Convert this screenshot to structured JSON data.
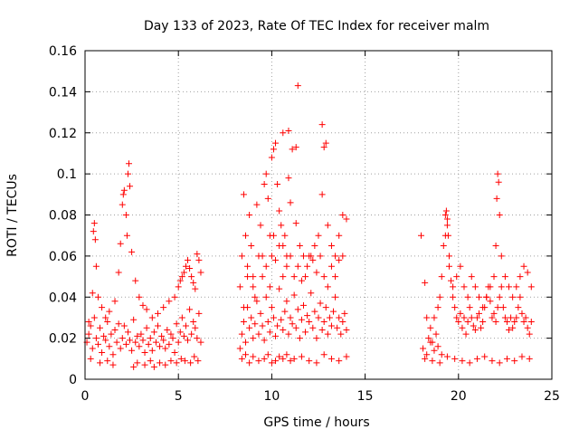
{
  "chart_data": {
    "type": "scatter",
    "title": "Day 133 of 2023, Rate Of TEC Index for receiver malm",
    "xlabel": "GPS time / hours",
    "ylabel": "ROTI / TECUs",
    "xlim": [
      0,
      25
    ],
    "ylim": [
      0,
      0.16
    ],
    "x_ticks": [
      0,
      5,
      10,
      15,
      20,
      25
    ],
    "x_tick_labels": [
      "0",
      "5",
      "10",
      "15",
      "20",
      "25"
    ],
    "y_ticks": [
      0,
      0.02,
      0.04,
      0.06,
      0.08,
      0.1,
      0.12,
      0.14,
      0.16
    ],
    "y_tick_labels": [
      "0",
      "0.02",
      "0.04",
      "0.06",
      "0.08",
      "0.1",
      "0.12",
      "0.14",
      "0.16"
    ],
    "grid": true,
    "marker": "+",
    "marker_color": "#ff0000",
    "series": [
      {
        "x": [
          0.1,
          0.2,
          0.3,
          0.4,
          0.5,
          0.6,
          0.7,
          0.8,
          0.9,
          1.0,
          1.1,
          1.2,
          1.3,
          1.4,
          1.5,
          1.6,
          1.7,
          1.8,
          1.9,
          2.0,
          2.1,
          2.2,
          2.3,
          2.4,
          2.5,
          2.6,
          2.7,
          2.8,
          2.9,
          3.0,
          3.1,
          3.2,
          3.3,
          3.4,
          3.5,
          3.6,
          3.7,
          3.8,
          3.9,
          4.0,
          4.1,
          4.2,
          4.3,
          4.4,
          4.5,
          4.6,
          4.7,
          4.8,
          4.9,
          5.0,
          5.1,
          5.2,
          5.3,
          5.4,
          5.5,
          5.6,
          5.7,
          5.8,
          5.9,
          6.0,
          6.1,
          6.2,
          0.2,
          0.4,
          0.45,
          0.5,
          0.55,
          0.6,
          0.7,
          0.9,
          1.1,
          1.3,
          1.6,
          1.8,
          1.9,
          2.0,
          2.05,
          2.1,
          2.2,
          2.25,
          2.3,
          2.35,
          2.4,
          2.5,
          2.7,
          2.9,
          3.1,
          3.3,
          3.6,
          3.9,
          4.2,
          4.5,
          4.8,
          5.0,
          5.1,
          5.2,
          5.3,
          5.4,
          5.5,
          5.6,
          5.7,
          5.8,
          5.9,
          6.0,
          6.1,
          6.2,
          0.3,
          0.8,
          1.2,
          1.5,
          2.6,
          2.8,
          3.2,
          3.5,
          3.7,
          4.0,
          4.3,
          4.6,
          4.9,
          5.15,
          5.35,
          5.65,
          5.85,
          6.05,
          8.3,
          8.4,
          8.5,
          8.6,
          8.7,
          8.8,
          8.9,
          9.0,
          9.1,
          9.2,
          9.3,
          9.4,
          9.5,
          9.6,
          9.7,
          9.8,
          9.9,
          10.0,
          10.1,
          10.2,
          10.3,
          10.4,
          10.5,
          10.6,
          10.7,
          10.8,
          10.9,
          11.0,
          11.1,
          11.2,
          11.3,
          11.4,
          11.5,
          11.6,
          11.7,
          11.8,
          11.9,
          12.0,
          12.1,
          12.2,
          12.3,
          12.4,
          12.5,
          12.6,
          12.7,
          12.8,
          12.9,
          13.0,
          13.1,
          13.2,
          13.3,
          13.4,
          13.5,
          13.6,
          13.7,
          13.8,
          13.9,
          14.0,
          8.3,
          8.4,
          8.5,
          8.6,
          8.7,
          8.8,
          8.9,
          9.0,
          9.2,
          9.4,
          9.5,
          9.6,
          9.7,
          9.8,
          9.9,
          10.0,
          10.1,
          10.2,
          10.3,
          10.4,
          10.5,
          10.6,
          10.7,
          10.8,
          10.9,
          11.0,
          11.1,
          11.3,
          11.5,
          11.7,
          11.9,
          12.1,
          12.3,
          12.5,
          12.7,
          12.8,
          12.9,
          13.0,
          13.2,
          13.4,
          13.6,
          13.8,
          14.0,
          8.5,
          8.7,
          9.0,
          9.1,
          9.3,
          9.5,
          9.7,
          9.9,
          10.0,
          10.1,
          10.2,
          10.4,
          10.6,
          10.8,
          11.0,
          11.2,
          11.4,
          11.6,
          11.8,
          12.0,
          12.2,
          12.4,
          12.6,
          12.8,
          13.0,
          13.2,
          13.4,
          13.6,
          13.8,
          8.4,
          8.6,
          8.8,
          9.0,
          9.3,
          9.6,
          9.8,
          10.0,
          10.2,
          10.4,
          10.6,
          10.8,
          11.0,
          11.2,
          11.6,
          12.0,
          12.4,
          12.8,
          13.2,
          13.6,
          14.0,
          10.6,
          10.9,
          11.3,
          11.4,
          12.7,
          18.0,
          18.2,
          18.3,
          18.4,
          18.5,
          18.6,
          18.7,
          18.8,
          18.9,
          19.0,
          19.1,
          19.2,
          19.3,
          19.4,
          19.5,
          19.6,
          19.7,
          19.8,
          19.9,
          20.0,
          20.1,
          20.2,
          20.3,
          20.4,
          20.5,
          20.6,
          20.7,
          20.8,
          20.9,
          21.0,
          21.1,
          21.2,
          21.3,
          21.4,
          21.5,
          21.6,
          21.7,
          21.8,
          21.9,
          22.0,
          22.1,
          22.2,
          22.3,
          22.4,
          22.5,
          22.6,
          22.7,
          22.8,
          22.9,
          23.0,
          23.1,
          23.2,
          23.3,
          23.4,
          23.5,
          23.6,
          23.7,
          23.8,
          23.9,
          18.1,
          18.3,
          18.5,
          18.7,
          18.9,
          19.1,
          19.3,
          19.35,
          19.4,
          19.45,
          19.5,
          19.7,
          19.9,
          20.1,
          20.3,
          20.5,
          20.7,
          20.9,
          21.1,
          21.3,
          21.5,
          21.7,
          21.9,
          22.0,
          22.05,
          22.1,
          22.15,
          22.2,
          22.3,
          22.5,
          22.7,
          22.9,
          23.1,
          23.3,
          23.5,
          23.7,
          23.9,
          18.2,
          18.6,
          19.0,
          19.4,
          19.8,
          20.2,
          20.6,
          21.0,
          21.4,
          21.8,
          22.2,
          22.6,
          23.0,
          23.4,
          23.8
        ],
        "y": [
          0.018,
          0.022,
          0.026,
          0.015,
          0.03,
          0.02,
          0.017,
          0.025,
          0.013,
          0.021,
          0.019,
          0.028,
          0.016,
          0.022,
          0.012,
          0.024,
          0.018,
          0.027,
          0.015,
          0.02,
          0.026,
          0.017,
          0.023,
          0.019,
          0.014,
          0.029,
          0.018,
          0.021,
          0.016,
          0.022,
          0.019,
          0.013,
          0.025,
          0.017,
          0.02,
          0.014,
          0.023,
          0.018,
          0.026,
          0.016,
          0.021,
          0.019,
          0.015,
          0.024,
          0.017,
          0.022,
          0.02,
          0.013,
          0.027,
          0.018,
          0.023,
          0.03,
          0.021,
          0.026,
          0.019,
          0.034,
          0.022,
          0.028,
          0.025,
          0.02,
          0.032,
          0.018,
          0.028,
          0.042,
          0.072,
          0.076,
          0.068,
          0.055,
          0.04,
          0.035,
          0.03,
          0.033,
          0.038,
          0.052,
          0.066,
          0.085,
          0.09,
          0.092,
          0.08,
          0.07,
          0.1,
          0.105,
          0.094,
          0.062,
          0.048,
          0.04,
          0.036,
          0.034,
          0.03,
          0.032,
          0.035,
          0.038,
          0.04,
          0.045,
          0.048,
          0.05,
          0.052,
          0.055,
          0.058,
          0.054,
          0.05,
          0.047,
          0.044,
          0.061,
          0.058,
          0.052,
          0.01,
          0.008,
          0.009,
          0.007,
          0.006,
          0.008,
          0.007,
          0.009,
          0.006,
          0.008,
          0.007,
          0.009,
          0.008,
          0.01,
          0.009,
          0.008,
          0.011,
          0.009,
          0.015,
          0.022,
          0.028,
          0.018,
          0.035,
          0.025,
          0.03,
          0.02,
          0.027,
          0.038,
          0.022,
          0.032,
          0.026,
          0.019,
          0.04,
          0.028,
          0.023,
          0.035,
          0.03,
          0.021,
          0.026,
          0.044,
          0.029,
          0.024,
          0.033,
          0.038,
          0.022,
          0.03,
          0.027,
          0.041,
          0.025,
          0.034,
          0.02,
          0.029,
          0.036,
          0.023,
          0.031,
          0.028,
          0.042,
          0.025,
          0.033,
          0.02,
          0.03,
          0.037,
          0.024,
          0.028,
          0.035,
          0.022,
          0.03,
          0.026,
          0.033,
          0.04,
          0.025,
          0.03,
          0.022,
          0.028,
          0.032,
          0.024,
          0.045,
          0.06,
          0.09,
          0.07,
          0.055,
          0.08,
          0.065,
          0.05,
          0.085,
          0.075,
          0.06,
          0.095,
          0.1,
          0.088,
          0.07,
          0.108,
          0.112,
          0.115,
          0.095,
          0.082,
          0.075,
          0.065,
          0.07,
          0.06,
          0.098,
          0.086,
          0.112,
          0.076,
          0.065,
          0.06,
          0.055,
          0.06,
          0.065,
          0.07,
          0.09,
          0.113,
          0.115,
          0.075,
          0.065,
          0.06,
          0.07,
          0.08,
          0.078,
          0.035,
          0.05,
          0.045,
          0.04,
          0.06,
          0.05,
          0.055,
          0.045,
          0.06,
          0.07,
          0.058,
          0.065,
          0.05,
          0.055,
          0.06,
          0.05,
          0.055,
          0.048,
          0.05,
          0.06,
          0.058,
          0.052,
          0.06,
          0.05,
          0.045,
          0.055,
          0.05,
          0.058,
          0.06,
          0.01,
          0.012,
          0.008,
          0.011,
          0.009,
          0.01,
          0.012,
          0.008,
          0.009,
          0.011,
          0.01,
          0.012,
          0.009,
          0.01,
          0.011,
          0.009,
          0.008,
          0.012,
          0.01,
          0.009,
          0.011,
          0.12,
          0.121,
          0.113,
          0.143,
          0.124,
          0.07,
          0.047,
          0.03,
          0.02,
          0.025,
          0.018,
          0.03,
          0.022,
          0.035,
          0.04,
          0.05,
          0.065,
          0.08,
          0.075,
          0.055,
          0.048,
          0.04,
          0.035,
          0.03,
          0.028,
          0.032,
          0.025,
          0.03,
          0.022,
          0.028,
          0.035,
          0.03,
          0.026,
          0.024,
          0.03,
          0.032,
          0.025,
          0.028,
          0.035,
          0.04,
          0.045,
          0.038,
          0.03,
          0.032,
          0.028,
          0.035,
          0.04,
          0.045,
          0.035,
          0.03,
          0.028,
          0.024,
          0.03,
          0.025,
          0.028,
          0.03,
          0.035,
          0.04,
          0.032,
          0.028,
          0.03,
          0.025,
          0.022,
          0.028,
          0.015,
          0.012,
          0.018,
          0.014,
          0.016,
          0.012,
          0.07,
          0.082,
          0.078,
          0.07,
          0.06,
          0.045,
          0.05,
          0.055,
          0.045,
          0.04,
          0.05,
          0.045,
          0.04,
          0.035,
          0.04,
          0.045,
          0.05,
          0.065,
          0.088,
          0.1,
          0.096,
          0.08,
          0.06,
          0.05,
          0.045,
          0.04,
          0.045,
          0.05,
          0.055,
          0.052,
          0.045,
          0.01,
          0.009,
          0.008,
          0.011,
          0.01,
          0.009,
          0.008,
          0.01,
          0.011,
          0.009,
          0.008,
          0.01,
          0.009,
          0.011,
          0.01
        ]
      }
    ]
  }
}
